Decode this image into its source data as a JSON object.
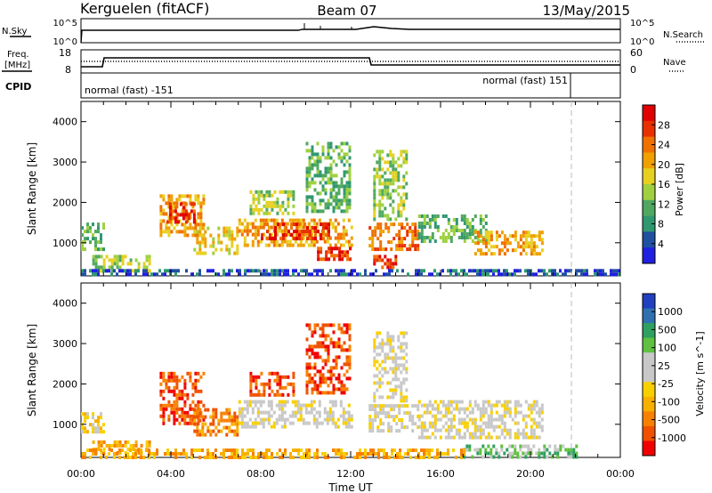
{
  "header": {
    "station": "Kerguelen (fitACF)",
    "beam": "Beam 07",
    "date": "13/May/2015"
  },
  "labels": {
    "nsky": "N.Sky",
    "nsearch": "N.Search",
    "freq_top": "Freq.",
    "freq_unit": "[MHz]",
    "nave": "Nave",
    "cpid": "CPID",
    "cpid_left": "normal (fast) -151",
    "cpid_right": "normal (fast) 151",
    "nsky_tick_top": "10^5",
    "nsky_tick_bottom": "10^0",
    "nsearch_tick_top": "10^5",
    "nsearch_tick_bottom": "10^0",
    "freq_tick_top": "18",
    "freq_tick_bottom": "8",
    "nave_tick_top": "60",
    "nave_tick_bottom": "0"
  },
  "colors": {
    "power_scale": [
      "#2020e0",
      "#2050a0",
      "#309870",
      "#50a860",
      "#a0d040",
      "#e8d020",
      "#f0a000",
      "#f07000",
      "#e83000",
      "#e00000"
    ],
    "velocity_scale": [
      "#f00000",
      "#f05000",
      "#f88000",
      "#f8b000",
      "#f8d000",
      "#c8c8c8",
      "#c8c8c8",
      "#60c040",
      "#30a060",
      "#3070b0",
      "#2040c0"
    ]
  },
  "chart_data": [
    {
      "type": "heatmap",
      "name": "Power",
      "xlabel": "",
      "ylabel": "Slant Range [km]",
      "colorbar_label": "Power [dB]",
      "colorbar_ticks": [
        "28",
        "24",
        "20",
        "16",
        "12",
        "8",
        "4"
      ],
      "x_ticks": [
        "00:00",
        "04:00",
        "08:00",
        "12:00",
        "16:00",
        "20:00",
        "00:00"
      ],
      "y_ticks": [
        "1000",
        "2000",
        "3000",
        "4000"
      ],
      "xlim_hours": [
        0,
        24
      ],
      "ylim_km": [
        180,
        4500
      ],
      "regions": [
        {
          "t0": 0.0,
          "t1": 1.0,
          "r0": 800,
          "r1": 1500,
          "level": 3
        },
        {
          "t0": 0.5,
          "t1": 3.0,
          "r0": 300,
          "r1": 700,
          "level": 4
        },
        {
          "t0": 3.5,
          "t1": 5.5,
          "r0": 1200,
          "r1": 2200,
          "level": 6
        },
        {
          "t0": 3.8,
          "t1": 5.0,
          "r0": 1500,
          "r1": 2000,
          "level": 8
        },
        {
          "t0": 5.0,
          "t1": 7.0,
          "r0": 700,
          "r1": 1400,
          "level": 5
        },
        {
          "t0": 7.0,
          "t1": 12.0,
          "r0": 900,
          "r1": 1600,
          "level": 6
        },
        {
          "t0": 8.0,
          "t1": 11.0,
          "r0": 1100,
          "r1": 1500,
          "level": 8
        },
        {
          "t0": 7.5,
          "t1": 9.5,
          "r0": 1700,
          "r1": 2300,
          "level": 4
        },
        {
          "t0": 10.0,
          "t1": 12.0,
          "r0": 1800,
          "r1": 3500,
          "level": 3
        },
        {
          "t0": 10.5,
          "t1": 12.0,
          "r0": 600,
          "r1": 900,
          "level": 8
        },
        {
          "t0": 12.8,
          "t1": 15.0,
          "r0": 800,
          "r1": 1500,
          "level": 7
        },
        {
          "t0": 13.0,
          "t1": 14.5,
          "r0": 1600,
          "r1": 3300,
          "level": 4
        },
        {
          "t0": 13.0,
          "t1": 14.0,
          "r0": 400,
          "r1": 700,
          "level": 8
        },
        {
          "t0": 15.0,
          "t1": 18.0,
          "r0": 1000,
          "r1": 1700,
          "level": 3
        },
        {
          "t0": 17.5,
          "t1": 20.5,
          "r0": 700,
          "r1": 1300,
          "level": 6
        },
        {
          "t0": 0.0,
          "t1": 24.0,
          "r0": 200,
          "r1": 350,
          "level": 1
        }
      ]
    },
    {
      "type": "heatmap",
      "name": "Velocity",
      "xlabel": "Time UT",
      "ylabel": "Slant Range [km]",
      "colorbar_label": "Velocity [m s^-1]",
      "colorbar_ticks": [
        "1000",
        "500",
        "100",
        "25",
        "-25",
        "-100",
        "-500",
        "-1000"
      ],
      "x_ticks": [
        "00:00",
        "04:00",
        "08:00",
        "12:00",
        "16:00",
        "20:00",
        "00:00"
      ],
      "y_ticks": [
        "1000",
        "2000",
        "3000",
        "4000"
      ],
      "xlim_hours": [
        0,
        24
      ],
      "ylim_km": [
        180,
        4500
      ],
      "regions": [
        {
          "t0": 0.0,
          "t1": 1.0,
          "r0": 800,
          "r1": 1300,
          "level": 4
        },
        {
          "t0": 0.5,
          "t1": 3.0,
          "r0": 250,
          "r1": 600,
          "level": 3
        },
        {
          "t0": 3.5,
          "t1": 5.5,
          "r0": 1000,
          "r1": 2300,
          "level": 1
        },
        {
          "t0": 5.0,
          "t1": 7.0,
          "r0": 700,
          "r1": 1400,
          "level": 2
        },
        {
          "t0": 7.0,
          "t1": 12.0,
          "r0": 900,
          "r1": 1600,
          "level": 5
        },
        {
          "t0": 7.5,
          "t1": 9.5,
          "r0": 1700,
          "r1": 2300,
          "level": 1
        },
        {
          "t0": 10.0,
          "t1": 12.0,
          "r0": 1800,
          "r1": 3500,
          "level": 1
        },
        {
          "t0": 12.8,
          "t1": 15.0,
          "r0": 800,
          "r1": 1500,
          "level": 5
        },
        {
          "t0": 13.0,
          "t1": 14.5,
          "r0": 1600,
          "r1": 3300,
          "level": 5
        },
        {
          "t0": 15.0,
          "t1": 20.5,
          "r0": 700,
          "r1": 1600,
          "level": 5
        },
        {
          "t0": 17.0,
          "t1": 22.0,
          "r0": 200,
          "r1": 500,
          "level": 7
        },
        {
          "t0": 0.0,
          "t1": 17.0,
          "r0": 200,
          "r1": 400,
          "level": 3
        }
      ]
    }
  ]
}
